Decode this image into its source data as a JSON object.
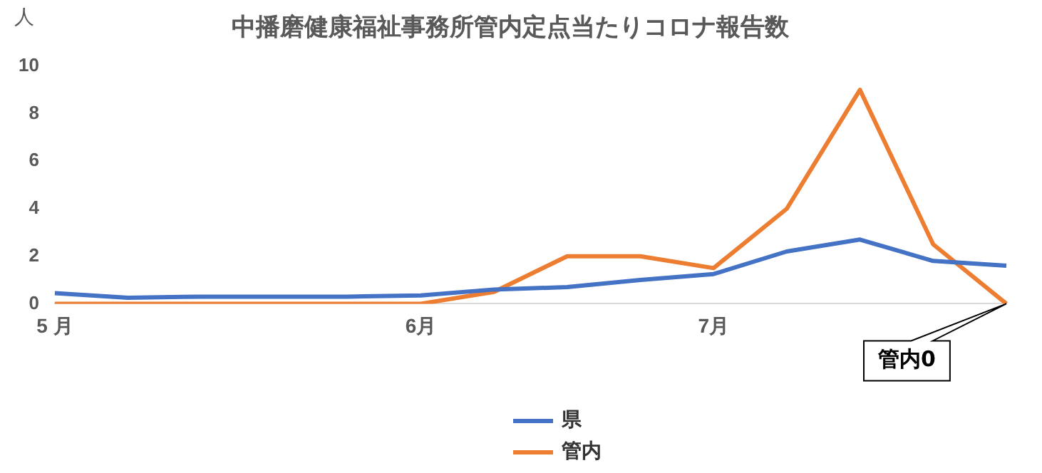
{
  "chart_data": {
    "type": "line",
    "title": "中播磨健康福祉事務所管内定点当たりコロナ報告数",
    "ylabel": "人",
    "categories": [
      "5 月",
      null,
      null,
      null,
      null,
      "6月",
      null,
      null,
      null,
      "7月",
      null,
      null,
      null,
      null
    ],
    "series": [
      {
        "name": "県",
        "color": "#4472c4",
        "values": [
          0.45,
          0.25,
          0.3,
          0.3,
          0.3,
          0.35,
          0.6,
          0.7,
          1.0,
          1.25,
          2.2,
          2.7,
          1.8,
          1.6
        ]
      },
      {
        "name": "管内",
        "color": "#ed7d31",
        "values": [
          0,
          0,
          0,
          0,
          0,
          0,
          0.5,
          2,
          2,
          1.5,
          4,
          9,
          2.5,
          0
        ]
      }
    ],
    "ylim": [
      0,
      10
    ],
    "yticks": [
      0,
      2,
      4,
      6,
      8,
      10
    ],
    "grid": false,
    "legend": "bottom",
    "marker": "none",
    "line_style": "solid",
    "annotations": [
      "管内0"
    ]
  }
}
